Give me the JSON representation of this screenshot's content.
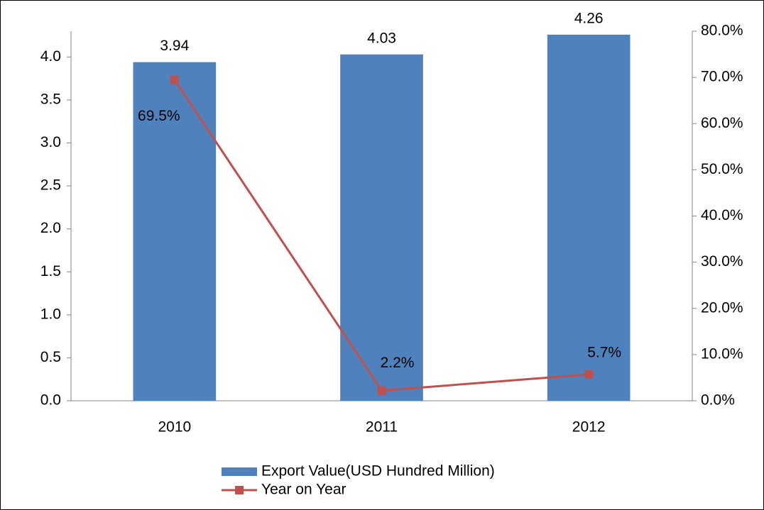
{
  "chart_data": {
    "type": "bar_line",
    "categories": [
      "2010",
      "2011",
      "2012"
    ],
    "series": [
      {
        "name": "Export Value(USD Hundred Million)",
        "type": "bar",
        "color": "#4f81bd",
        "values": [
          3.94,
          4.03,
          4.26
        ]
      },
      {
        "name": "Year on Year",
        "type": "line",
        "color": "#c0504d",
        "axis": "y2",
        "values": [
          69.5,
          2.2,
          5.7
        ],
        "value_labels": [
          "69.5%",
          "2.2%",
          "5.7%"
        ]
      }
    ],
    "ylim": [
      0,
      4.3
    ],
    "yticks": [
      {
        "value": 0,
        "label": "0.0"
      },
      0.5,
      {
        "value": 1,
        "label": "1.0"
      },
      1.5,
      {
        "value": 2,
        "label": "2.0"
      },
      2.5,
      {
        "value": 3,
        "label": "3.0"
      },
      3.5,
      {
        "value": 4,
        "label": "4.0"
      }
    ],
    "y2lim": [
      0,
      80
    ],
    "y2ticks": [
      {
        "value": 0,
        "label": "0.0%"
      },
      {
        "value": 10,
        "label": "10.0%"
      },
      {
        "value": 20,
        "label": "20.0%"
      },
      {
        "value": 30,
        "label": "30.0%"
      },
      {
        "value": 40,
        "label": "40.0%"
      },
      {
        "value": 50,
        "label": "50.0%"
      },
      {
        "value": 60,
        "label": "60.0%"
      },
      {
        "value": 70,
        "label": "70.0%"
      },
      {
        "value": 80,
        "label": "80.0%"
      }
    ],
    "grid": false,
    "legend": "bottom"
  }
}
